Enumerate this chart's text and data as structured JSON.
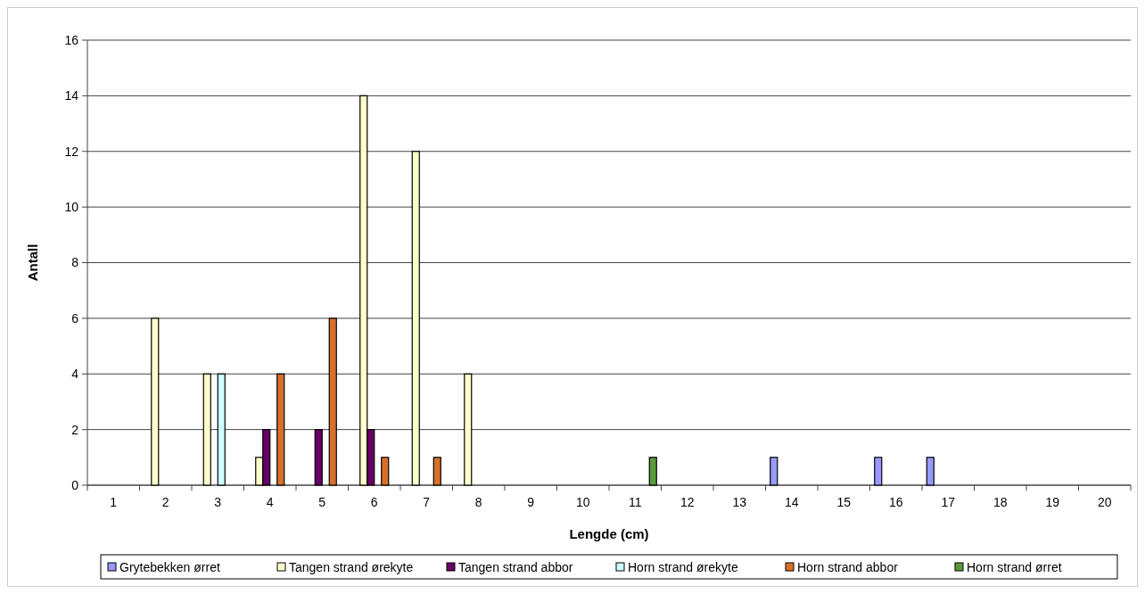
{
  "chart_data": {
    "type": "bar",
    "xlabel": "Lengde (cm)",
    "ylabel": "Antall",
    "categories": [
      "1",
      "2",
      "3",
      "4",
      "5",
      "6",
      "7",
      "8",
      "9",
      "10",
      "11",
      "12",
      "13",
      "14",
      "15",
      "16",
      "17",
      "18",
      "19",
      "20"
    ],
    "series": [
      {
        "name": "Grytebekken ørret",
        "color": "#9999ff",
        "values": [
          null,
          null,
          null,
          null,
          null,
          null,
          null,
          null,
          null,
          null,
          null,
          null,
          null,
          1,
          null,
          1,
          1,
          null,
          null,
          null
        ]
      },
      {
        "name": "Tangen strand ørekyte",
        "color": "#ffffcc",
        "values": [
          null,
          6,
          4,
          1,
          null,
          14,
          12,
          4,
          null,
          null,
          null,
          null,
          null,
          null,
          null,
          null,
          null,
          null,
          null,
          null
        ]
      },
      {
        "name": "Tangen strand abbor",
        "color": "#660066",
        "values": [
          null,
          null,
          null,
          2,
          2,
          2,
          null,
          null,
          null,
          null,
          null,
          null,
          null,
          null,
          null,
          null,
          null,
          null,
          null,
          null
        ]
      },
      {
        "name": "Horn strand ørekyte",
        "color": "#ccffff",
        "values": [
          null,
          null,
          4,
          null,
          null,
          null,
          null,
          null,
          null,
          null,
          null,
          null,
          null,
          null,
          null,
          null,
          null,
          null,
          null,
          null
        ]
      },
      {
        "name": "Horn strand abbor",
        "color": "#d9702a",
        "values": [
          null,
          null,
          null,
          4,
          6,
          1,
          1,
          null,
          null,
          null,
          null,
          null,
          null,
          null,
          null,
          null,
          null,
          null,
          null,
          null
        ]
      },
      {
        "name": "Horn strand ørret",
        "color": "#5b9a3c",
        "values": [
          null,
          null,
          null,
          null,
          null,
          null,
          null,
          null,
          null,
          null,
          1,
          null,
          null,
          null,
          null,
          null,
          null,
          null,
          null,
          null
        ]
      }
    ],
    "ylim": [
      0,
      16
    ],
    "yticks": [
      0,
      2,
      4,
      6,
      8,
      10,
      12,
      14,
      16
    ],
    "grid": "y",
    "legend": "bottom"
  }
}
